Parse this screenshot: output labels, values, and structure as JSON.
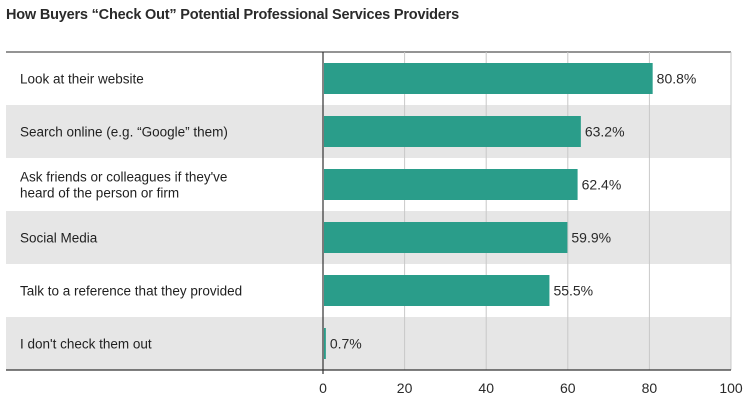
{
  "chart_data": {
    "type": "bar",
    "orientation": "horizontal",
    "title": "How Buyers “Check Out” Potential Professional Services Providers",
    "categories": [
      [
        "Look at their website"
      ],
      [
        "Search online (e.g. “Google” them)"
      ],
      [
        "Ask friends or colleagues if they've",
        "heard of the person or firm"
      ],
      [
        "Social Media"
      ],
      [
        "Talk to a reference that they provided"
      ],
      [
        "I don't check them out"
      ]
    ],
    "values": [
      80.8,
      63.2,
      62.4,
      59.9,
      55.5,
      0.7
    ],
    "value_labels": [
      "80.8%",
      "63.2%",
      "62.4%",
      "59.9%",
      "55.5%",
      "0.7%"
    ],
    "xlim": [
      0,
      100
    ],
    "xticks": [
      0,
      20,
      40,
      60,
      80,
      100
    ],
    "grid": "vertical",
    "colors": {
      "bar": "#2a9d8a",
      "band": "#e6e6e6",
      "gridline": "#c8c8c8",
      "axis": "#333333"
    }
  }
}
